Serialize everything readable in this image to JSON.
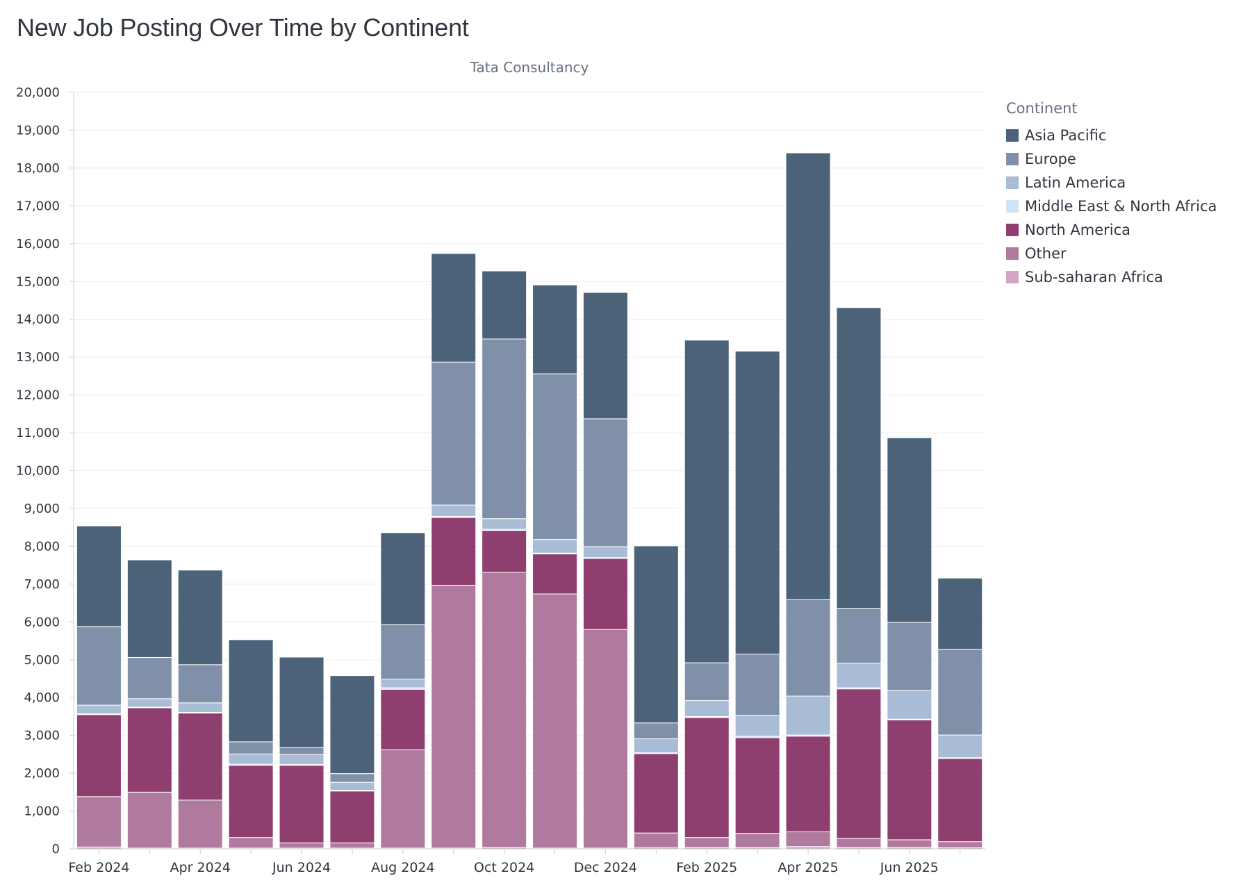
{
  "page": {
    "title": "New Job Posting Over Time by Continent"
  },
  "chart_data": {
    "type": "bar",
    "stacked": true,
    "subtitle": "Tata Consultancy",
    "xlabel": "",
    "ylabel": "",
    "ylim": [
      0,
      20000
    ],
    "y_ticks": [
      0,
      1000,
      2000,
      3000,
      4000,
      5000,
      6000,
      7000,
      8000,
      9000,
      10000,
      11000,
      12000,
      13000,
      14000,
      15000,
      16000,
      17000,
      18000,
      19000,
      20000
    ],
    "y_tick_labels": [
      "0",
      "1,000",
      "2,000",
      "3,000",
      "4,000",
      "5,000",
      "6,000",
      "7,000",
      "8,000",
      "9,000",
      "10,000",
      "11,000",
      "12,000",
      "13,000",
      "14,000",
      "15,000",
      "16,000",
      "17,000",
      "18,000",
      "19,000",
      "20,000"
    ],
    "grid": true,
    "categories": [
      "Feb 2024",
      "Mar 2024",
      "Apr 2024",
      "May 2024",
      "Jun 2024",
      "Jul 2024",
      "Aug 2024",
      "Sep 2024",
      "Oct 2024",
      "Nov 2024",
      "Dec 2024",
      "Jan 2025",
      "Feb 2025",
      "Mar 2025",
      "Apr 2025",
      "May 2025",
      "Jun 2025",
      "Jul 2025"
    ],
    "x_tick_labels": [
      "Feb 2024",
      "Apr 2024",
      "Jun 2024",
      "Aug 2024",
      "Oct 2024",
      "Dec 2024",
      "Feb 2025",
      "Apr 2025",
      "Jun 2025"
    ],
    "x_tick_label_indices": [
      0,
      2,
      4,
      6,
      8,
      10,
      12,
      14,
      16
    ],
    "legend": {
      "title": "Continent",
      "position": "right",
      "entries": [
        "Asia Pacific",
        "Europe",
        "Latin America",
        "Middle East & North Africa",
        "North America",
        "Other",
        "Sub-saharan Africa"
      ]
    },
    "series": [
      {
        "name": "Sub-saharan Africa",
        "color": "#d4a6c6",
        "values": [
          50,
          20,
          20,
          20,
          20,
          20,
          20,
          20,
          40,
          20,
          20,
          30,
          40,
          40,
          60,
          40,
          40,
          30
        ]
      },
      {
        "name": "Other",
        "color": "#b07a9e",
        "values": [
          1330,
          1480,
          1270,
          280,
          140,
          140,
          2600,
          6950,
          7270,
          6720,
          5780,
          390,
          260,
          370,
          390,
          240,
          200,
          160
        ]
      },
      {
        "name": "North America",
        "color": "#8f3e70",
        "values": [
          2170,
          2230,
          2300,
          1910,
          2050,
          1370,
          1600,
          1790,
          1110,
          1060,
          1880,
          2100,
          3170,
          2530,
          2530,
          3950,
          3170,
          2200
        ]
      },
      {
        "name": "Middle East & North Africa",
        "color": "#cce4f5",
        "values": [
          20,
          20,
          20,
          30,
          20,
          20,
          40,
          30,
          30,
          20,
          20,
          20,
          30,
          40,
          30,
          30,
          20,
          20
        ]
      },
      {
        "name": "Latin America",
        "color": "#a8bcd6",
        "values": [
          230,
          220,
          250,
          270,
          260,
          210,
          230,
          300,
          280,
          360,
          290,
          370,
          420,
          550,
          1030,
          650,
          760,
          600
        ]
      },
      {
        "name": "Europe",
        "color": "#7f90a8",
        "values": [
          2080,
          1090,
          1010,
          320,
          190,
          230,
          1440,
          3780,
          4750,
          4380,
          3380,
          420,
          1000,
          1620,
          2550,
          1450,
          1800,
          2270
        ]
      },
      {
        "name": "Asia Pacific",
        "color": "#4c6279",
        "values": [
          2660,
          2580,
          2500,
          2700,
          2390,
          2590,
          2430,
          2870,
          1800,
          2350,
          3340,
          4680,
          8530,
          8010,
          11810,
          7950,
          4880,
          1880
        ]
      }
    ]
  }
}
